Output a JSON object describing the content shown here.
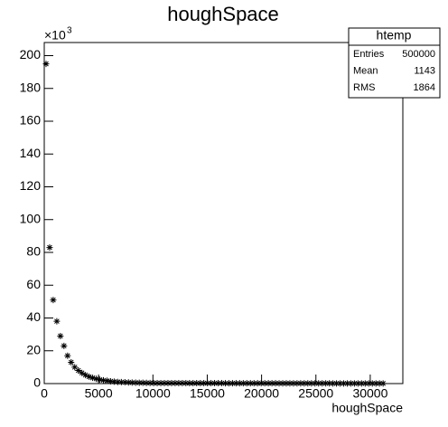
{
  "chart_data": {
    "type": "histogram",
    "title": "houghSpace",
    "x_label": "houghSpace",
    "y_multiplier": "×10",
    "y_multiplier_exp": "3",
    "stats": {
      "name": "htemp",
      "rows": [
        [
          "Entries",
          "500000"
        ],
        [
          "Mean",
          "1143"
        ],
        [
          "RMS",
          "1864"
        ]
      ]
    },
    "color": "#000000",
    "xlim": [
      0,
      33000
    ],
    "ylim": [
      0,
      208
    ],
    "xticks": [
      0,
      5000,
      10000,
      15000,
      20000,
      25000,
      30000
    ],
    "yticks": [
      0,
      20,
      40,
      60,
      80,
      100,
      120,
      140,
      160,
      180,
      200
    ],
    "bins": [
      0,
      330,
      660,
      990,
      1320,
      1650,
      1980,
      2310,
      2640,
      2970,
      3300,
      3630,
      3960,
      4290,
      4620,
      4950,
      5280,
      5610,
      5940,
      6270,
      6600,
      6930,
      7260,
      7590,
      7920,
      8250,
      8580,
      8910,
      9240,
      9570,
      9900,
      10230,
      10560,
      10890,
      11220,
      11550,
      11880,
      12210,
      12540,
      12870,
      13200,
      13530,
      13860,
      14190,
      14520,
      14850,
      15180,
      15510,
      15840,
      16170,
      16500,
      16830,
      17160,
      17490,
      17820,
      18150,
      18480,
      18810,
      19140,
      19470,
      19800,
      20130,
      20460,
      20790,
      21120,
      21450,
      21780,
      22110,
      22440,
      22770,
      23100,
      23430,
      23760,
      24090,
      24420,
      24750,
      25080,
      25410,
      25740,
      26070,
      26400,
      26730,
      27060,
      27390,
      27720,
      28050,
      28380,
      28710,
      29040,
      29370,
      29700,
      30030,
      30360,
      30690,
      31020,
      31350
    ],
    "values": [
      195,
      83,
      51,
      38,
      29,
      23,
      17,
      13,
      10,
      8,
      6.5,
      5.2,
      4.2,
      3.5,
      2.9,
      2.4,
      2.0,
      1.7,
      1.4,
      1.2,
      1.0,
      0.9,
      0.8,
      0.7,
      0.6,
      0.55,
      0.5,
      0.45,
      0.4,
      0.35,
      0.3,
      0.3,
      0.3,
      0.3,
      0.3,
      0.3,
      0.3,
      0.3,
      0.3,
      0.3,
      0.25,
      0.25,
      0.25,
      0.25,
      0.25,
      0.25,
      0.25,
      0.25,
      0.25,
      0.25,
      0.2,
      0.2,
      0.2,
      0.2,
      0.2,
      0.2,
      0.2,
      0.2,
      0.2,
      0.2,
      0.2,
      0.2,
      0.2,
      0.2,
      0.2,
      0.15,
      0.15,
      0.15,
      0.15,
      0.15,
      0.15,
      0.15,
      0.15,
      0.15,
      0.15,
      0.15,
      0.15,
      0.15,
      0.15,
      0.15,
      0.1,
      0.1,
      0.1,
      0.1,
      0.1,
      0.1,
      0.1,
      0.1,
      0.1,
      0.1,
      0.1,
      0.1,
      0.1,
      0.1,
      0.1
    ]
  }
}
